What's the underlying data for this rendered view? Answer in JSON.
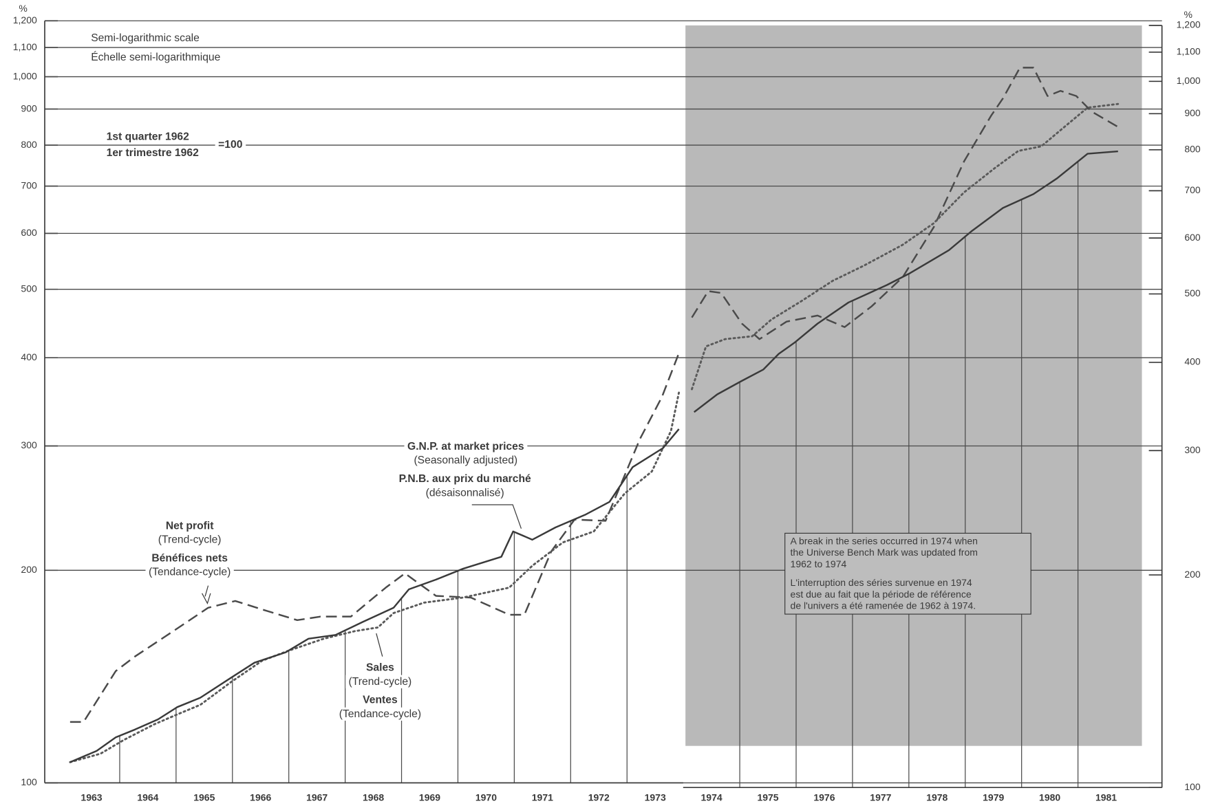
{
  "chart_data": {
    "type": "line",
    "y_unit": "%",
    "y2_unit": "%",
    "log_scale": true,
    "grid": true,
    "xlim": [
      1962.67,
      1982.49
    ],
    "xticks": [
      {
        "value": 1963.5,
        "label": "1963"
      },
      {
        "value": 1964.5,
        "label": "1964"
      },
      {
        "value": 1965.5,
        "label": "1965"
      },
      {
        "value": 1966.5,
        "label": "1966"
      },
      {
        "value": 1967.5,
        "label": "1967"
      },
      {
        "value": 1968.5,
        "label": "1968"
      },
      {
        "value": 1969.5,
        "label": "1969"
      },
      {
        "value": 1970.5,
        "label": "1970"
      },
      {
        "value": 1971.5,
        "label": "1971"
      },
      {
        "value": 1972.5,
        "label": "1972"
      },
      {
        "value": 1973.5,
        "label": "1973"
      },
      {
        "value": 1974.5,
        "label": "1974"
      },
      {
        "value": 1975.5,
        "label": "1975"
      },
      {
        "value": 1976.5,
        "label": "1976"
      },
      {
        "value": 1977.5,
        "label": "1977"
      },
      {
        "value": 1978.5,
        "label": "1978"
      },
      {
        "value": 1979.5,
        "label": "1979"
      },
      {
        "value": 1980.5,
        "label": "1980"
      },
      {
        "value": 1981.5,
        "label": "1981"
      }
    ],
    "ylim": [
      100,
      1200
    ],
    "yticks": [
      100,
      200,
      300,
      400,
      500,
      600,
      700,
      800,
      900,
      {
        "value": 1000,
        "label": "1,000"
      },
      {
        "value": 1100,
        "label": "1,100"
      },
      {
        "value": 1200,
        "label": "1,200"
      }
    ],
    "y2lim": [
      100,
      1200
    ],
    "y2ticks": [
      100,
      200,
      300,
      400,
      500,
      600,
      700,
      800,
      900,
      {
        "value": 1000,
        "label": "1,000"
      },
      {
        "value": 1100,
        "label": "1,100"
      },
      {
        "value": 1200,
        "label": "1,200"
      }
    ],
    "series": [
      {
        "name": "Net profit",
        "color": "#4a4a4a",
        "style": "dashed",
        "x": [
          1963.12,
          1963.36,
          1963.93,
          1964.27,
          1965.0,
          1965.57,
          1966.05,
          1966.53,
          1967.15,
          1967.56,
          1968.1,
          1968.72,
          1969.06,
          1969.61,
          1970.23,
          1970.91,
          1971.18,
          1971.66,
          1972.07,
          1972.62,
          1973.23,
          1973.62,
          1973.92,
          null,
          1974.15,
          1974.44,
          1974.67,
          1975.04,
          1975.35,
          1975.83,
          1976.38,
          1976.86,
          1977.34,
          1977.89,
          1978.44,
          1978.98,
          1979.46,
          1979.67,
          1979.97,
          1980.21,
          1980.46,
          1980.69,
          1980.97,
          1981.24,
          1981.71
        ],
        "values": [
          122,
          122,
          144,
          151,
          165,
          177,
          181,
          176,
          170,
          172,
          172,
          189,
          198,
          184,
          183,
          173,
          173,
          213,
          236,
          235,
          307,
          352,
          406,
          null,
          456,
          497,
          494,
          447,
          425,
          450,
          459,
          442,
          473,
          520,
          612,
          759,
          881,
          932,
          1030,
          1030,
          939,
          955,
          939,
          893,
          849
        ]
      },
      {
        "name": "Sales",
        "color": "#5a5a5a",
        "style": "dotted",
        "x": [
          1963.12,
          1963.66,
          1964.07,
          1964.61,
          1965.02,
          1965.43,
          1965.98,
          1966.53,
          1967.01,
          1967.62,
          1968.17,
          1968.58,
          1968.86,
          1969.4,
          1970.09,
          1970.91,
          1971.32,
          1971.86,
          1972.41,
          1972.96,
          1973.44,
          1973.78,
          1973.92,
          null,
          1974.15,
          1974.4,
          1974.74,
          1975.22,
          1975.56,
          1976.11,
          1976.65,
          1977.2,
          1977.89,
          1978.44,
          1978.98,
          1979.53,
          1979.94,
          1980.35,
          1980.76,
          1981.17,
          1981.71
        ],
        "values": [
          107,
          110,
          115,
          121,
          125,
          129,
          139,
          149,
          154,
          160,
          164,
          166,
          174,
          180,
          183,
          189,
          203,
          219,
          227,
          257,
          276,
          315,
          357,
          null,
          361,
          415,
          425,
          429,
          453,
          482,
          514,
          540,
          578,
          620,
          686,
          743,
          785,
          797,
          849,
          904,
          915
        ]
      },
      {
        "name": "G.N.P. at market prices",
        "color": "#3a3a3a",
        "style": "solid",
        "x": [
          1963.12,
          1963.59,
          1963.93,
          1964.27,
          1964.68,
          1965.02,
          1965.43,
          1965.98,
          1966.39,
          1966.94,
          1967.35,
          1967.83,
          1968.31,
          1968.86,
          1969.13,
          1969.61,
          1970.09,
          1970.77,
          1970.98,
          1971.32,
          1971.73,
          1972.27,
          1972.69,
          1973.1,
          1973.64,
          1973.92,
          null,
          1974.19,
          1974.6,
          1975.01,
          1975.42,
          1975.69,
          1975.97,
          1976.38,
          1976.93,
          1977.61,
          1978.02,
          1978.71,
          1979.12,
          1979.67,
          1980.21,
          1980.63,
          1981.17,
          1981.71
        ],
        "values": [
          107,
          111,
          116,
          119,
          123,
          128,
          132,
          141,
          148,
          153,
          160,
          162,
          169,
          177,
          188,
          194,
          201,
          209,
          227,
          221,
          230,
          240,
          250,
          280,
          298,
          317,
          null,
          335,
          355,
          370,
          385,
          405,
          420,
          447,
          479,
          507,
          527,
          568,
          605,
          652,
          682,
          718,
          778,
          784
        ]
      }
    ],
    "annotations": {
      "scale_en": "Semi-logarithmic scale",
      "scale_fr": "Échelle semi-logarithmique",
      "base_en": "1st quarter 1962",
      "base_fr": "1er trimestre 1962",
      "base_value": "=100",
      "gnp_note_en": "(Seasonally adjusted)",
      "gnp_name_fr": "P.N.B. aux prix du marché",
      "gnp_note_fr": "(désaisonnalisé)",
      "profit_note_en": "(Trend-cycle)",
      "profit_name_fr": "Bénéfices nets",
      "profit_note_fr": "(Tendance-cycle)",
      "sales_note_en": "(Trend-cycle)",
      "sales_name_fr": "Ventes",
      "sales_note_fr": "(Tendance-cycle)"
    },
    "break_note": [
      "A break in the series occurred in 1974 when",
      "the Universe Bench Mark was updated from",
      "1962 to 1974",
      "L'interruption des séries survenue en 1974",
      "est due au fait que la période de référence",
      "de l'univers a été ramenée de 1962 à 1974."
    ]
  }
}
